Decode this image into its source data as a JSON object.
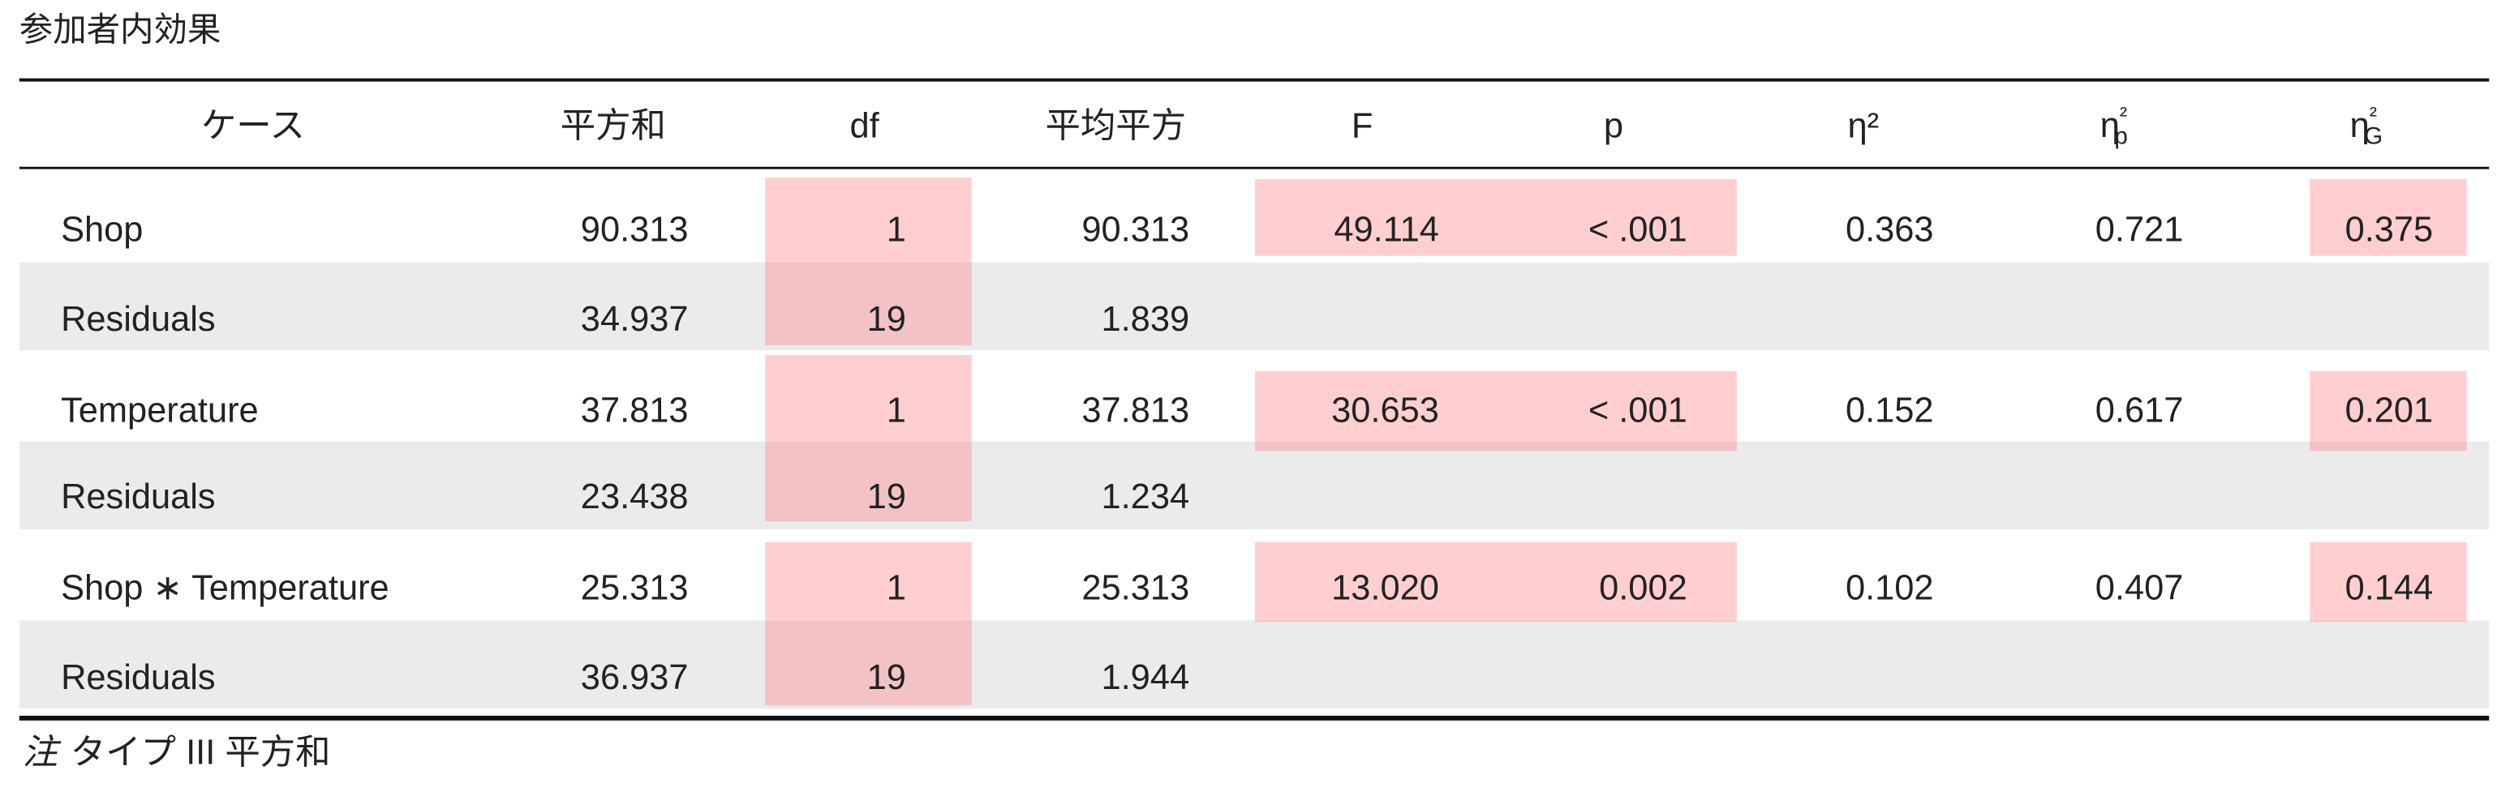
{
  "title": "参加者内効果",
  "table": {
    "headers": [
      "ケース",
      "平方和",
      "df",
      "平均平方",
      "F",
      "p",
      "η²",
      {
        "base": "η",
        "sup": "²",
        "sub": "p"
      },
      {
        "base": "η",
        "sup": "²",
        "sub": "G"
      }
    ],
    "rows": [
      [
        "Shop",
        "90.313",
        "1",
        "90.313",
        "49.114",
        "< .001",
        "0.363",
        "0.721",
        "0.375"
      ],
      [
        "Residuals",
        "34.937",
        "19",
        "1.839"
      ],
      [
        "Temperature",
        "37.813",
        "1",
        "37.813",
        "30.653",
        "< .001",
        "0.152",
        "0.617",
        "0.201"
      ],
      [
        "Residuals",
        "23.438",
        "19",
        "1.234"
      ],
      [
        "Shop ∗ Temperature",
        "25.313",
        "1",
        "25.313",
        "13.020",
        "0.002",
        "0.102",
        "0.407",
        "0.144"
      ],
      [
        "Residuals",
        "36.937",
        "19",
        "1.944"
      ]
    ]
  },
  "note": {
    "label": "注",
    "text": "タイプ III 平方和"
  }
}
